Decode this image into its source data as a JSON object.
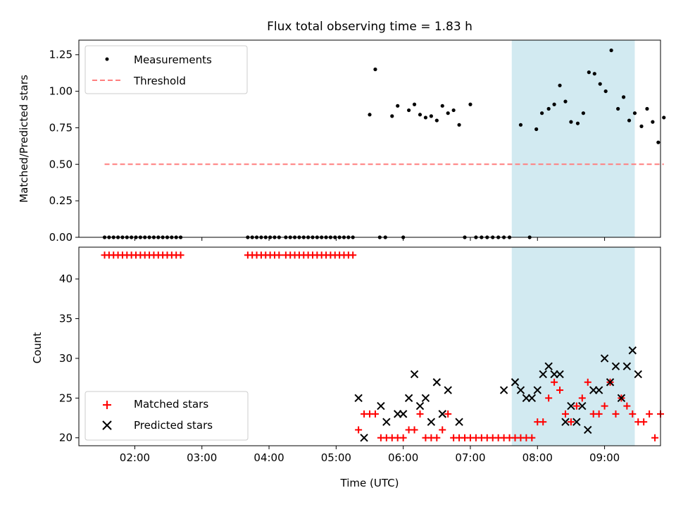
{
  "chart_data": [
    {
      "type": "scatter",
      "title": "Flux total observing time = 1.83 h",
      "xlabel": "",
      "ylabel": "Matched/Predicted stars",
      "xlim": [
        "01:10",
        "09:50"
      ],
      "ylim": [
        0,
        1.35
      ],
      "yticks": [
        "0.00",
        "0.25",
        "0.50",
        "0.75",
        "1.00",
        "1.25"
      ],
      "xticks": [
        "02:00",
        "03:00",
        "04:00",
        "05:00",
        "06:00",
        "07:00",
        "08:00",
        "09:00"
      ],
      "xtick_labels_shown": false,
      "shaded_span": [
        "07:37",
        "09:27"
      ],
      "shade_color": "#add8e6",
      "legend_position": "upper left",
      "series": [
        {
          "name": "Measurements",
          "marker": "dot",
          "color": "#000000",
          "points": [
            [
              "01:33",
              0
            ],
            [
              "01:37",
              0
            ],
            [
              "01:41",
              0
            ],
            [
              "01:45",
              0
            ],
            [
              "01:49",
              0
            ],
            [
              "01:53",
              0
            ],
            [
              "01:57",
              0
            ],
            [
              "02:01",
              0
            ],
            [
              "02:05",
              0
            ],
            [
              "02:09",
              0
            ],
            [
              "02:13",
              0
            ],
            [
              "02:17",
              0
            ],
            [
              "02:21",
              0
            ],
            [
              "02:25",
              0
            ],
            [
              "02:29",
              0
            ],
            [
              "02:33",
              0
            ],
            [
              "02:37",
              0
            ],
            [
              "02:41",
              0
            ],
            [
              "03:41",
              0
            ],
            [
              "03:45",
              0
            ],
            [
              "03:49",
              0
            ],
            [
              "03:53",
              0
            ],
            [
              "03:57",
              0
            ],
            [
              "04:01",
              0
            ],
            [
              "04:05",
              0
            ],
            [
              "04:09",
              0
            ],
            [
              "04:15",
              0
            ],
            [
              "04:19",
              0
            ],
            [
              "04:23",
              0
            ],
            [
              "04:27",
              0
            ],
            [
              "04:31",
              0
            ],
            [
              "04:35",
              0
            ],
            [
              "04:39",
              0
            ],
            [
              "04:43",
              0
            ],
            [
              "04:47",
              0
            ],
            [
              "04:51",
              0
            ],
            [
              "04:55",
              0
            ],
            [
              "04:59",
              0
            ],
            [
              "05:03",
              0
            ],
            [
              "05:07",
              0
            ],
            [
              "05:11",
              0
            ],
            [
              "05:15",
              0
            ],
            [
              "05:30",
              0.84
            ],
            [
              "05:35",
              1.15
            ],
            [
              "05:39",
              0
            ],
            [
              "05:44",
              0
            ],
            [
              "05:50",
              0.83
            ],
            [
              "05:55",
              0.9
            ],
            [
              "06:00",
              0
            ],
            [
              "06:05",
              0.87
            ],
            [
              "06:10",
              0.91
            ],
            [
              "06:15",
              0.84
            ],
            [
              "06:20",
              0.82
            ],
            [
              "06:25",
              0.83
            ],
            [
              "06:30",
              0.8
            ],
            [
              "06:35",
              0.9
            ],
            [
              "06:40",
              0.85
            ],
            [
              "06:45",
              0.87
            ],
            [
              "06:50",
              0.77
            ],
            [
              "06:55",
              0
            ],
            [
              "07:00",
              0.91
            ],
            [
              "07:05",
              0
            ],
            [
              "07:10",
              0
            ],
            [
              "07:15",
              0
            ],
            [
              "07:20",
              0
            ],
            [
              "07:25",
              0
            ],
            [
              "07:30",
              0
            ],
            [
              "07:35",
              0
            ],
            [
              "07:45",
              0.77
            ],
            [
              "07:53",
              0
            ],
            [
              "07:59",
              0.74
            ],
            [
              "08:04",
              0.85
            ],
            [
              "08:10",
              0.88
            ],
            [
              "08:15",
              0.91
            ],
            [
              "08:20",
              1.04
            ],
            [
              "08:25",
              0.93
            ],
            [
              "08:30",
              0.79
            ],
            [
              "08:36",
              0.78
            ],
            [
              "08:41",
              0.85
            ],
            [
              "08:46",
              1.13
            ],
            [
              "08:51",
              1.12
            ],
            [
              "08:56",
              1.05
            ],
            [
              "09:01",
              1.0
            ],
            [
              "09:06",
              1.28
            ],
            [
              "09:12",
              0.88
            ],
            [
              "09:17",
              0.96
            ],
            [
              "09:22",
              0.8
            ],
            [
              "09:27",
              0.85
            ],
            [
              "09:33",
              0.76
            ],
            [
              "09:38",
              0.88
            ],
            [
              "09:43",
              0.79
            ],
            [
              "09:48",
              0.65
            ],
            [
              "09:53",
              0.82
            ]
          ]
        },
        {
          "name": "Threshold",
          "marker": "dashed-line",
          "color": "#ff7f7f",
          "points": [
            [
              "01:33",
              0.5
            ],
            [
              "09:53",
              0.5
            ]
          ]
        }
      ]
    },
    {
      "type": "scatter",
      "title": "",
      "xlabel": "Time (UTC)",
      "ylabel": "Count",
      "xlim": [
        "01:10",
        "09:50"
      ],
      "ylim": [
        19,
        44
      ],
      "yticks": [
        "20",
        "25",
        "30",
        "35",
        "40"
      ],
      "xticks": [
        "02:00",
        "03:00",
        "04:00",
        "05:00",
        "06:00",
        "07:00",
        "08:00",
        "09:00"
      ],
      "shaded_span": [
        "07:37",
        "09:27"
      ],
      "shade_color": "#add8e6",
      "legend_position": "lower left",
      "series": [
        {
          "name": "Matched stars",
          "marker": "plus",
          "color": "#ff0000",
          "points": [
            [
              "01:33",
              43
            ],
            [
              "01:37",
              43
            ],
            [
              "01:41",
              43
            ],
            [
              "01:45",
              43
            ],
            [
              "01:49",
              43
            ],
            [
              "01:53",
              43
            ],
            [
              "01:57",
              43
            ],
            [
              "02:01",
              43
            ],
            [
              "02:05",
              43
            ],
            [
              "02:09",
              43
            ],
            [
              "02:13",
              43
            ],
            [
              "02:17",
              43
            ],
            [
              "02:21",
              43
            ],
            [
              "02:25",
              43
            ],
            [
              "02:29",
              43
            ],
            [
              "02:33",
              43
            ],
            [
              "02:37",
              43
            ],
            [
              "02:41",
              43
            ],
            [
              "03:41",
              43
            ],
            [
              "03:45",
              43
            ],
            [
              "03:49",
              43
            ],
            [
              "03:53",
              43
            ],
            [
              "03:57",
              43
            ],
            [
              "04:01",
              43
            ],
            [
              "04:05",
              43
            ],
            [
              "04:09",
              43
            ],
            [
              "04:15",
              43
            ],
            [
              "04:19",
              43
            ],
            [
              "04:23",
              43
            ],
            [
              "04:27",
              43
            ],
            [
              "04:31",
              43
            ],
            [
              "04:35",
              43
            ],
            [
              "04:39",
              43
            ],
            [
              "04:43",
              43
            ],
            [
              "04:47",
              43
            ],
            [
              "04:51",
              43
            ],
            [
              "04:55",
              43
            ],
            [
              "04:59",
              43
            ],
            [
              "05:03",
              43
            ],
            [
              "05:07",
              43
            ],
            [
              "05:11",
              43
            ],
            [
              "05:15",
              43
            ],
            [
              "05:20",
              21
            ],
            [
              "05:25",
              23
            ],
            [
              "05:30",
              23
            ],
            [
              "05:35",
              23
            ],
            [
              "05:40",
              20
            ],
            [
              "05:45",
              20
            ],
            [
              "05:50",
              20
            ],
            [
              "05:55",
              20
            ],
            [
              "06:00",
              20
            ],
            [
              "06:05",
              21
            ],
            [
              "06:10",
              21
            ],
            [
              "06:15",
              23
            ],
            [
              "06:20",
              20
            ],
            [
              "06:25",
              20
            ],
            [
              "06:30",
              20
            ],
            [
              "06:35",
              21
            ],
            [
              "06:40",
              23
            ],
            [
              "06:45",
              20
            ],
            [
              "06:50",
              20
            ],
            [
              "06:55",
              20
            ],
            [
              "07:00",
              20
            ],
            [
              "07:05",
              20
            ],
            [
              "07:10",
              20
            ],
            [
              "07:15",
              20
            ],
            [
              "07:20",
              20
            ],
            [
              "07:25",
              20
            ],
            [
              "07:30",
              20
            ],
            [
              "07:35",
              20
            ],
            [
              "07:40",
              20
            ],
            [
              "07:45",
              20
            ],
            [
              "07:50",
              20
            ],
            [
              "07:55",
              20
            ],
            [
              "08:00",
              22
            ],
            [
              "08:05",
              22
            ],
            [
              "08:10",
              25
            ],
            [
              "08:15",
              27
            ],
            [
              "08:20",
              26
            ],
            [
              "08:25",
              23
            ],
            [
              "08:30",
              22
            ],
            [
              "08:35",
              24
            ],
            [
              "08:40",
              25
            ],
            [
              "08:45",
              27
            ],
            [
              "08:50",
              23
            ],
            [
              "08:55",
              23
            ],
            [
              "09:00",
              24
            ],
            [
              "09:05",
              27
            ],
            [
              "09:10",
              23
            ],
            [
              "09:15",
              25
            ],
            [
              "09:20",
              24
            ],
            [
              "09:25",
              23
            ],
            [
              "09:30",
              22
            ],
            [
              "09:35",
              22
            ],
            [
              "09:40",
              23
            ],
            [
              "09:45",
              20
            ],
            [
              "09:50",
              23
            ]
          ]
        },
        {
          "name": "Predicted stars",
          "marker": "x",
          "color": "#000000",
          "points": [
            [
              "05:20",
              25
            ],
            [
              "05:25",
              20
            ],
            [
              "05:40",
              24
            ],
            [
              "05:45",
              22
            ],
            [
              "05:55",
              23
            ],
            [
              "06:00",
              23
            ],
            [
              "06:05",
              25
            ],
            [
              "06:10",
              28
            ],
            [
              "06:15",
              24
            ],
            [
              "06:20",
              25
            ],
            [
              "06:25",
              22
            ],
            [
              "06:30",
              27
            ],
            [
              "06:35",
              23
            ],
            [
              "06:40",
              26
            ],
            [
              "06:50",
              22
            ],
            [
              "07:30",
              26
            ],
            [
              "07:40",
              27
            ],
            [
              "07:45",
              26
            ],
            [
              "07:50",
              25
            ],
            [
              "07:55",
              25
            ],
            [
              "08:00",
              26
            ],
            [
              "08:05",
              28
            ],
            [
              "08:10",
              29
            ],
            [
              "08:15",
              28
            ],
            [
              "08:20",
              28
            ],
            [
              "08:25",
              22
            ],
            [
              "08:30",
              24
            ],
            [
              "08:35",
              22
            ],
            [
              "08:40",
              24
            ],
            [
              "08:45",
              21
            ],
            [
              "08:50",
              26
            ],
            [
              "08:55",
              26
            ],
            [
              "09:00",
              30
            ],
            [
              "09:05",
              27
            ],
            [
              "09:10",
              29
            ],
            [
              "09:15",
              25
            ],
            [
              "09:20",
              29
            ],
            [
              "09:25",
              31
            ],
            [
              "09:30",
              28
            ]
          ]
        }
      ]
    }
  ]
}
